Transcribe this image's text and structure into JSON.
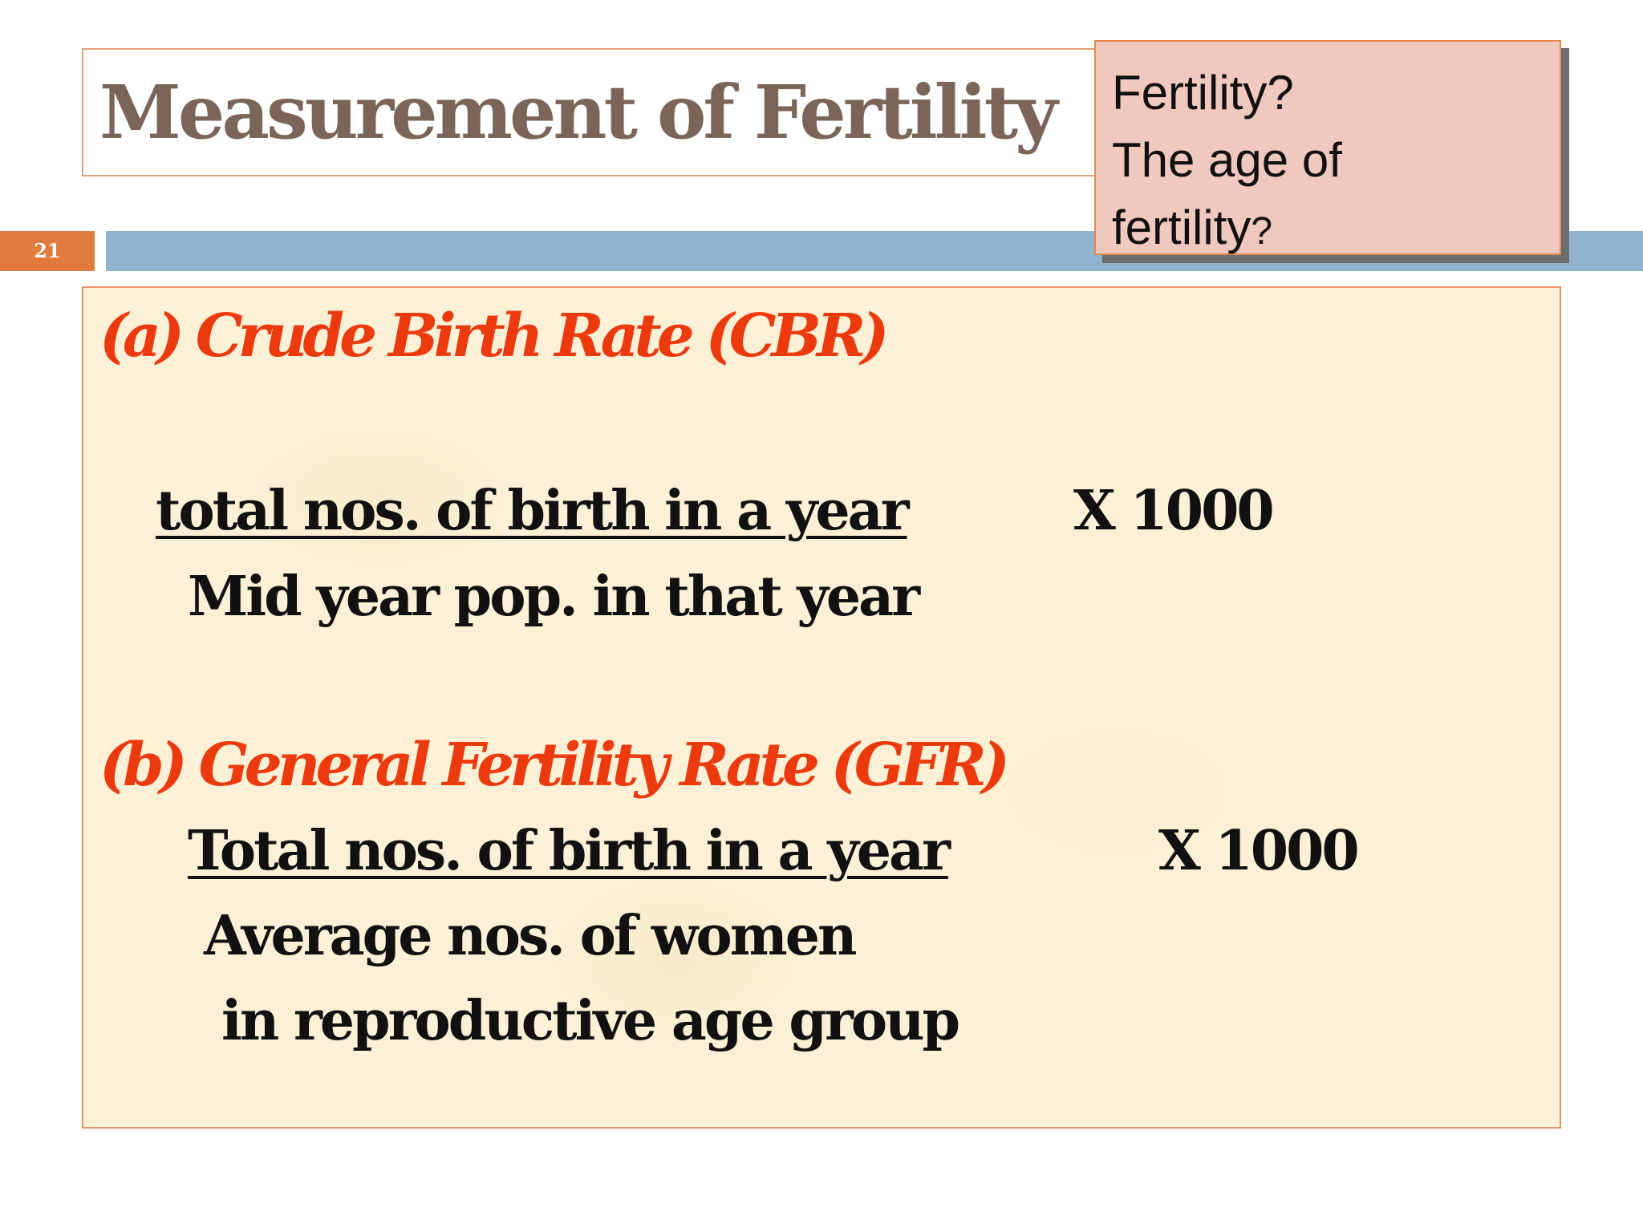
{
  "slide": {
    "title": "Measurement of Fertility",
    "number": "21"
  },
  "note": {
    "line1": "Fertility?",
    "line2": "The age of",
    "line3": "fertility",
    "line3_mark": "?"
  },
  "sections": {
    "cbr": {
      "heading": "(a)  Crude Birth Rate (CBR)",
      "numerator": "total nos. of birth in a year",
      "denominator": "Mid year pop. in that year",
      "multiplier": "X  1000"
    },
    "gfr": {
      "heading": "(b) General Fertility Rate (GFR)",
      "numerator": "Total nos. of birth in a year",
      "denominator_line1": "Average nos. of women",
      "denominator_line2": "in reproductive age group",
      "multiplier": "X 1000"
    }
  }
}
